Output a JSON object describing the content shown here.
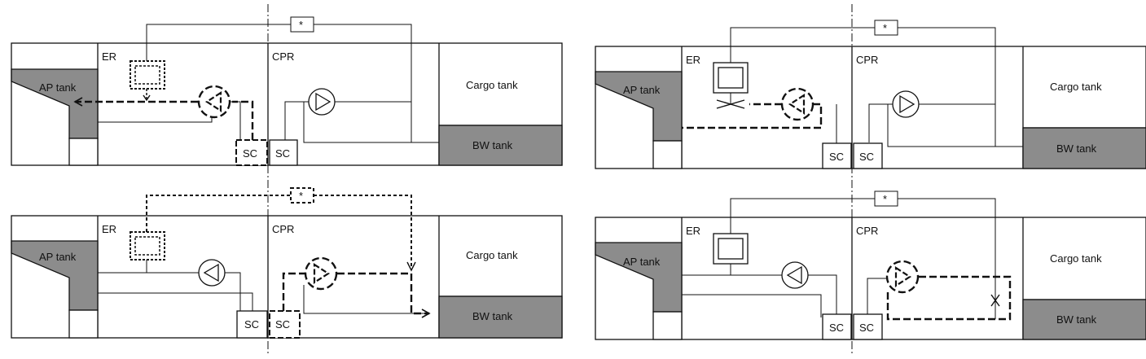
{
  "labels": {
    "er": "ER",
    "cpr": "CPR",
    "ap_tank": "AP tank",
    "cargo_tank": "Cargo tank",
    "bw_tank": "BW tank",
    "sc": "SC",
    "star": "*"
  },
  "colors": {
    "tank_fill": "#8c8c8c",
    "line": "#111111",
    "background": "#ffffff"
  },
  "panels": [
    {
      "name": "top-left",
      "er_pump": "active",
      "cpr_pump": "idle",
      "er_unit": "dotted",
      "bw_path": false
    },
    {
      "name": "bottom-left",
      "er_pump": "idle",
      "cpr_pump": "active",
      "er_unit": "dotted",
      "bw_path": true
    },
    {
      "name": "top-right",
      "er_pump": "active",
      "cpr_pump": "idle",
      "er_unit": "solid",
      "bw_path": false
    },
    {
      "name": "bottom-right",
      "er_pump": "idle",
      "cpr_pump": "active",
      "er_unit": "solid",
      "bw_path": true
    }
  ]
}
